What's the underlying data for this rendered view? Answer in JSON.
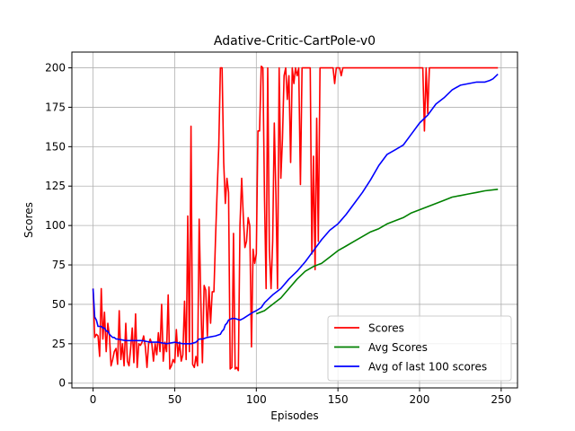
{
  "chart_data": {
    "type": "line",
    "title": "Adative-Critic-CartPole-v0",
    "xlabel": "Episodes",
    "ylabel": "Scores",
    "xlim": [
      -13,
      260
    ],
    "ylim": [
      -3,
      210
    ],
    "xticks": [
      0,
      50,
      100,
      150,
      200,
      250
    ],
    "yticks": [
      0,
      25,
      50,
      75,
      100,
      125,
      150,
      175,
      200
    ],
    "grid": true,
    "legend_position": "lower-right",
    "series": [
      {
        "name": "Scores",
        "color": "#ff0000",
        "points": [
          [
            0,
            60
          ],
          [
            1,
            29
          ],
          [
            2,
            31
          ],
          [
            3,
            30
          ],
          [
            4,
            17
          ],
          [
            5,
            60
          ],
          [
            6,
            28
          ],
          [
            7,
            45
          ],
          [
            8,
            20
          ],
          [
            9,
            38
          ],
          [
            10,
            30
          ],
          [
            11,
            11
          ],
          [
            12,
            15
          ],
          [
            13,
            20
          ],
          [
            14,
            22
          ],
          [
            15,
            12
          ],
          [
            16,
            46
          ],
          [
            17,
            15
          ],
          [
            18,
            25
          ],
          [
            19,
            11
          ],
          [
            20,
            38
          ],
          [
            21,
            14
          ],
          [
            22,
            11
          ],
          [
            23,
            22
          ],
          [
            24,
            35
          ],
          [
            25,
            13
          ],
          [
            26,
            44
          ],
          [
            27,
            10
          ],
          [
            28,
            25
          ],
          [
            29,
            24
          ],
          [
            30,
            26
          ],
          [
            31,
            30
          ],
          [
            32,
            23
          ],
          [
            33,
            10
          ],
          [
            34,
            25
          ],
          [
            35,
            28
          ],
          [
            36,
            25
          ],
          [
            37,
            14
          ],
          [
            38,
            25
          ],
          [
            39,
            18
          ],
          [
            40,
            32
          ],
          [
            41,
            20
          ],
          [
            42,
            50
          ],
          [
            43,
            14
          ],
          [
            44,
            26
          ],
          [
            45,
            20
          ],
          [
            46,
            56
          ],
          [
            47,
            9
          ],
          [
            48,
            11
          ],
          [
            49,
            15
          ],
          [
            50,
            13
          ],
          [
            51,
            34
          ],
          [
            52,
            17
          ],
          [
            53,
            26
          ],
          [
            54,
            14
          ],
          [
            55,
            18
          ],
          [
            56,
            52
          ],
          [
            57,
            15
          ],
          [
            58,
            106
          ],
          [
            59,
            20
          ],
          [
            60,
            163
          ],
          [
            61,
            12
          ],
          [
            62,
            10
          ],
          [
            63,
            17
          ],
          [
            64,
            11
          ],
          [
            65,
            104
          ],
          [
            66,
            53
          ],
          [
            67,
            13
          ],
          [
            68,
            62
          ],
          [
            69,
            59
          ],
          [
            70,
            30
          ],
          [
            71,
            61
          ],
          [
            72,
            38
          ],
          [
            73,
            58
          ],
          [
            74,
            58
          ],
          [
            75,
            92
          ],
          [
            76,
            122
          ],
          [
            77,
            150
          ],
          [
            78,
            200
          ],
          [
            79,
            200
          ],
          [
            80,
            140
          ],
          [
            81,
            114
          ],
          [
            82,
            130
          ],
          [
            83,
            121
          ],
          [
            84,
            9
          ],
          [
            85,
            10
          ],
          [
            86,
            95
          ],
          [
            87,
            9
          ],
          [
            88,
            10
          ],
          [
            89,
            8
          ],
          [
            90,
            100
          ],
          [
            91,
            130
          ],
          [
            92,
            106
          ],
          [
            93,
            86
          ],
          [
            94,
            90
          ],
          [
            95,
            105
          ],
          [
            96,
            100
          ],
          [
            97,
            23
          ],
          [
            98,
            85
          ],
          [
            99,
            76
          ],
          [
            100,
            82
          ],
          [
            101,
            160
          ],
          [
            102,
            160
          ],
          [
            103,
            201
          ],
          [
            104,
            200
          ],
          [
            105,
            118
          ],
          [
            106,
            60
          ],
          [
            107,
            200
          ],
          [
            108,
            85
          ],
          [
            109,
            60
          ],
          [
            110,
            90
          ],
          [
            111,
            165
          ],
          [
            112,
            120
          ],
          [
            113,
            60
          ],
          [
            114,
            200
          ],
          [
            115,
            130
          ],
          [
            116,
            155
          ],
          [
            117,
            195
          ],
          [
            118,
            200
          ],
          [
            119,
            180
          ],
          [
            120,
            195
          ],
          [
            121,
            140
          ],
          [
            122,
            200
          ],
          [
            123,
            190
          ],
          [
            124,
            200
          ],
          [
            125,
            195
          ],
          [
            126,
            200
          ],
          [
            127,
            126
          ],
          [
            128,
            200
          ],
          [
            129,
            200
          ],
          [
            130,
            200
          ],
          [
            131,
            200
          ],
          [
            132,
            200
          ],
          [
            133,
            200
          ],
          [
            134,
            82
          ],
          [
            135,
            144
          ],
          [
            136,
            72
          ],
          [
            137,
            168
          ],
          [
            138,
            90
          ],
          [
            139,
            200
          ],
          [
            140,
            200
          ],
          [
            141,
            200
          ],
          [
            142,
            200
          ],
          [
            143,
            200
          ],
          [
            144,
            200
          ],
          [
            145,
            200
          ],
          [
            146,
            200
          ],
          [
            147,
            200
          ],
          [
            148,
            190
          ],
          [
            149,
            200
          ],
          [
            150,
            200
          ],
          [
            151,
            200
          ],
          [
            152,
            195
          ],
          [
            153,
            200
          ],
          [
            160,
            200
          ],
          [
            170,
            200
          ],
          [
            180,
            200
          ],
          [
            190,
            200
          ],
          [
            200,
            200
          ],
          [
            202,
            200
          ],
          [
            203,
            160
          ],
          [
            204,
            200
          ],
          [
            205,
            171
          ],
          [
            206,
            200
          ],
          [
            210,
            200
          ],
          [
            220,
            200
          ],
          [
            230,
            200
          ],
          [
            240,
            200
          ],
          [
            248,
            200
          ]
        ]
      },
      {
        "name": "Avg Scores",
        "color": "#008000",
        "points": [
          [
            100,
            44
          ],
          [
            105,
            46
          ],
          [
            110,
            50
          ],
          [
            115,
            54
          ],
          [
            120,
            60
          ],
          [
            125,
            66
          ],
          [
            130,
            71
          ],
          [
            135,
            74
          ],
          [
            140,
            76
          ],
          [
            145,
            80
          ],
          [
            150,
            84
          ],
          [
            155,
            87
          ],
          [
            160,
            90
          ],
          [
            165,
            93
          ],
          [
            170,
            96
          ],
          [
            175,
            98
          ],
          [
            180,
            101
          ],
          [
            185,
            103
          ],
          [
            190,
            105
          ],
          [
            195,
            108
          ],
          [
            200,
            110
          ],
          [
            205,
            112
          ],
          [
            210,
            114
          ],
          [
            215,
            116
          ],
          [
            220,
            118
          ],
          [
            225,
            119
          ],
          [
            230,
            120
          ],
          [
            235,
            121
          ],
          [
            240,
            122
          ],
          [
            248,
            123
          ]
        ]
      },
      {
        "name": "Avg of last 100 scores",
        "color": "#0000ff",
        "points": [
          [
            0,
            60
          ],
          [
            1,
            42
          ],
          [
            2,
            40
          ],
          [
            3,
            36
          ],
          [
            4,
            36
          ],
          [
            5,
            36
          ],
          [
            6,
            35
          ],
          [
            7,
            35
          ],
          [
            8,
            33
          ],
          [
            9,
            33
          ],
          [
            10,
            31
          ],
          [
            11,
            30
          ],
          [
            12,
            29
          ],
          [
            13,
            29
          ],
          [
            14,
            28
          ],
          [
            15,
            28
          ],
          [
            20,
            27
          ],
          [
            25,
            27
          ],
          [
            30,
            27
          ],
          [
            35,
            26
          ],
          [
            40,
            26
          ],
          [
            45,
            25
          ],
          [
            50,
            26
          ],
          [
            55,
            25
          ],
          [
            60,
            25
          ],
          [
            63,
            26
          ],
          [
            65,
            28
          ],
          [
            67,
            28
          ],
          [
            70,
            29
          ],
          [
            75,
            30
          ],
          [
            78,
            31
          ],
          [
            79,
            33
          ],
          [
            80,
            34
          ],
          [
            81,
            37
          ],
          [
            82,
            38
          ],
          [
            83,
            40
          ],
          [
            85,
            41
          ],
          [
            87,
            41
          ],
          [
            90,
            40
          ],
          [
            92,
            41
          ],
          [
            95,
            43
          ],
          [
            98,
            45
          ],
          [
            100,
            46
          ],
          [
            103,
            48
          ],
          [
            105,
            51
          ],
          [
            108,
            54
          ],
          [
            110,
            56
          ],
          [
            115,
            60
          ],
          [
            120,
            66
          ],
          [
            125,
            71
          ],
          [
            130,
            77
          ],
          [
            135,
            84
          ],
          [
            140,
            91
          ],
          [
            145,
            97
          ],
          [
            150,
            101
          ],
          [
            155,
            107
          ],
          [
            160,
            114
          ],
          [
            165,
            121
          ],
          [
            170,
            129
          ],
          [
            175,
            138
          ],
          [
            180,
            145
          ],
          [
            185,
            148
          ],
          [
            190,
            151
          ],
          [
            195,
            158
          ],
          [
            200,
            165
          ],
          [
            205,
            170
          ],
          [
            210,
            177
          ],
          [
            215,
            181
          ],
          [
            220,
            186
          ],
          [
            225,
            189
          ],
          [
            230,
            190
          ],
          [
            235,
            191
          ],
          [
            240,
            191
          ],
          [
            243,
            192
          ],
          [
            245,
            193
          ],
          [
            248,
            196
          ]
        ]
      }
    ]
  }
}
